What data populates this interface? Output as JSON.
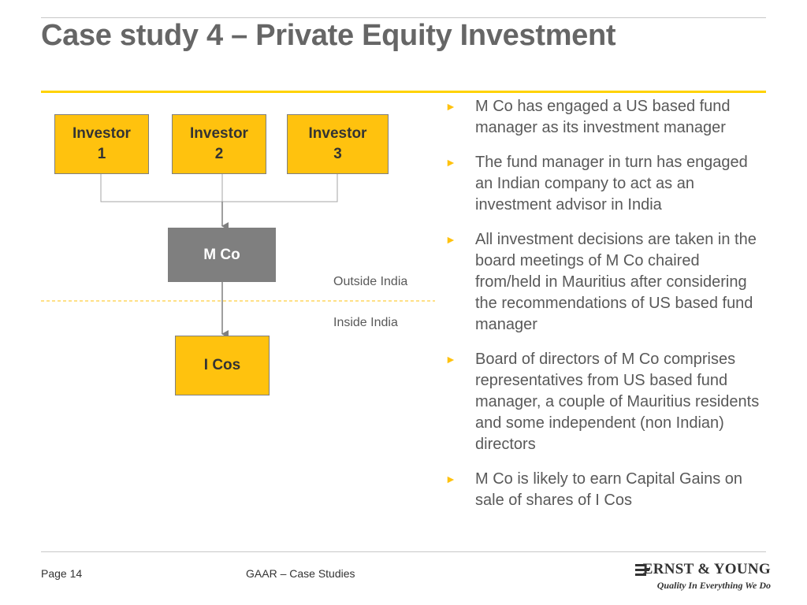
{
  "slide": {
    "title": "Case study 4 – Private Equity Investment"
  },
  "diagram": {
    "investors": [
      {
        "label": "Investor\n1"
      },
      {
        "label": "Investor\n2"
      },
      {
        "label": "Investor\n3"
      }
    ],
    "holding": {
      "label": "M Co"
    },
    "target": {
      "label": "I Cos"
    },
    "regions": {
      "outside": "Outside India",
      "inside": "Inside India"
    }
  },
  "bullets": [
    "M Co has engaged a US based fund manager as its investment manager",
    "The fund manager in turn has engaged an Indian company to act as an investment advisor in India",
    "All investment decisions are taken in the board meetings of M Co chaired from/held in Mauritius after considering the recommendations of US based fund manager",
    "Board of directors of M Co comprises representatives from US based fund manager, a couple of Mauritius residents and some independent (non Indian) directors",
    "M Co is likely to earn Capital Gains on sale of shares of I Cos"
  ],
  "footer": {
    "page": "Page 14",
    "center": "GAAR – Case Studies",
    "logo_name": "ERNST & YOUNG",
    "logo_tagline": "Quality In Everything We Do"
  },
  "colors": {
    "accent": "#ffc20e",
    "rule": "#ffd200",
    "mco": "#7f7f7f",
    "text": "#595959"
  },
  "icons": {
    "bullet": "right-pointer-icon",
    "logo": "ey-logo-icon"
  }
}
